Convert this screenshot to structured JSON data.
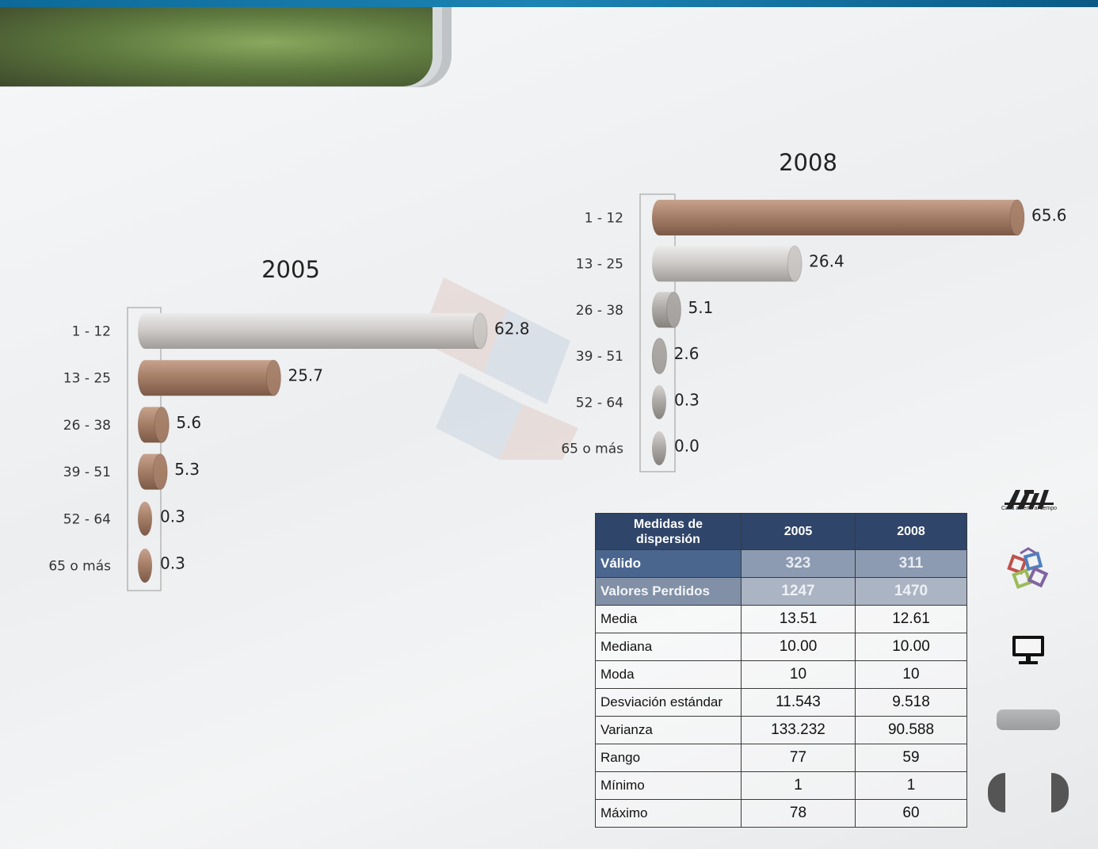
{
  "chart_data": [
    {
      "type": "bar",
      "orientation": "horizontal",
      "title": "2005",
      "categories": [
        "1 - 12",
        "13 - 25",
        "26 - 38",
        "39 - 51",
        "52 - 64",
        "65  o más"
      ],
      "values": [
        62.8,
        25.7,
        5.6,
        5.3,
        0.3,
        0.3
      ],
      "value_labels": [
        "62.8",
        "25.7",
        "5.6",
        "5.3",
        "0.3",
        "0.3"
      ],
      "bar_colors": [
        "#c9c6c4",
        "#a7806a",
        "#a7806a",
        "#a7806a",
        "#a7806a",
        "#a7806a"
      ],
      "xlim": [
        0,
        62.8
      ],
      "grid": false,
      "legend": "none"
    },
    {
      "type": "bar",
      "orientation": "horizontal",
      "title": "2008",
      "categories": [
        "1 - 12",
        "13 - 25",
        "26 - 38",
        "39 - 51",
        "52 - 64",
        "65  o más"
      ],
      "values": [
        65.6,
        26.4,
        5.1,
        2.6,
        0.3,
        0.0
      ],
      "value_labels": [
        "65.6",
        "26.4",
        "5.1",
        "2.6",
        "0.3",
        "0.0"
      ],
      "bar_colors": [
        "#a7806a",
        "#c9c6c4",
        "#a8a5a3",
        "#a8a5a3",
        "#a09894",
        "#9a8b82"
      ],
      "xlim": [
        0,
        65.6
      ],
      "grid": false,
      "legend": "none"
    }
  ],
  "table": {
    "headers": [
      "Medidas  de dispersión",
      "2005",
      "2008"
    ],
    "rows": [
      {
        "label": "Válido",
        "v2005": "323",
        "v2008": "311"
      },
      {
        "label": "Valores Perdidos",
        "v2005": "1247",
        "v2008": "1470"
      },
      {
        "label": "Media",
        "v2005": "13.51",
        "v2008": "12.61"
      },
      {
        "label": "Mediana",
        "v2005": "10.00",
        "v2008": "10.00"
      },
      {
        "label": "Moda",
        "v2005": "10",
        "v2008": "10"
      },
      {
        "label": "Desviación estándar",
        "v2005": "11.543",
        "v2008": "9.518"
      },
      {
        "label": "Varianza",
        "v2005": "133.232",
        "v2008": "90.588"
      },
      {
        "label": "Rango",
        "v2005": "77",
        "v2008": "59"
      },
      {
        "label": "Mínimo",
        "v2005": "1",
        "v2008": "1"
      },
      {
        "label": "Máximo",
        "v2005": "78",
        "v2008": "60"
      }
    ]
  },
  "sidebar": {
    "logo_icon": "uam-logo-icon",
    "logo_tagline": "Casa abierta al tiempo",
    "icons": [
      "shapes-logo-icon",
      "monitor-icon",
      "grey-button",
      "nav-prev-icon",
      "nav-next-icon"
    ]
  },
  "colors": {
    "header_bar": "#1c84b3",
    "banner": "#5f7a3f",
    "table_header": "#2f4569",
    "bar_brown": "#a7806a",
    "bar_grey": "#c9c6c4"
  }
}
